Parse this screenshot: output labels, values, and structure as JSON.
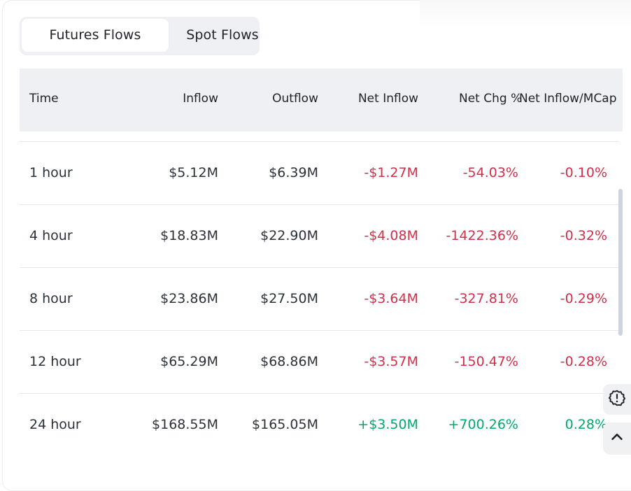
{
  "tabs": [
    {
      "label": "Futures Flows",
      "active": true
    },
    {
      "label": "Spot Flows",
      "active": false
    }
  ],
  "table": {
    "columns": [
      "Time",
      "Inflow",
      "Outflow",
      "Net Inflow",
      "Net Chg %",
      "Net Inflow/MCap"
    ],
    "rows": [
      {
        "time": "1 hour",
        "inflow": "$5.12M",
        "outflow": "$6.39M",
        "net_inflow": "-$1.27M",
        "net_chg": "-54.03%",
        "net_mcap": "-0.10%",
        "trend": "negative"
      },
      {
        "time": "4 hour",
        "inflow": "$18.83M",
        "outflow": "$22.90M",
        "net_inflow": "-$4.08M",
        "net_chg": "-1422.36%",
        "net_mcap": "-0.32%",
        "trend": "negative"
      },
      {
        "time": "8 hour",
        "inflow": "$23.86M",
        "outflow": "$27.50M",
        "net_inflow": "-$3.64M",
        "net_chg": "-327.81%",
        "net_mcap": "-0.29%",
        "trend": "negative"
      },
      {
        "time": "12 hour",
        "inflow": "$65.29M",
        "outflow": "$68.86M",
        "net_inflow": "-$3.57M",
        "net_chg": "-150.47%",
        "net_mcap": "-0.28%",
        "trend": "negative"
      },
      {
        "time": "24 hour",
        "inflow": "$168.55M",
        "outflow": "$165.05M",
        "net_inflow": "+$3.50M",
        "net_chg": "+700.26%",
        "net_mcap": "0.28%",
        "trend": "positive"
      }
    ]
  },
  "colors": {
    "negative": "#cf304a",
    "positive": "#03a66d",
    "header_bg": "#eef0f3"
  },
  "floating_buttons": [
    {
      "icon": "alert-badge-icon"
    },
    {
      "icon": "chevron-up-icon"
    }
  ]
}
